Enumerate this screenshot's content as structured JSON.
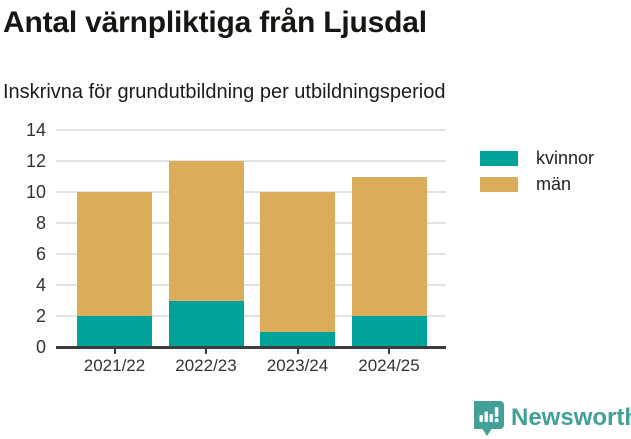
{
  "header": {
    "title": "Antal värnpliktiga från Ljusdal",
    "subtitle": "Inskrivna för grundutbildning per utbildningsperiod"
  },
  "chart_data": {
    "type": "bar",
    "stacked": true,
    "title": "Antal värnpliktiga från Ljusdal",
    "subtitle": "Inskrivna för grundutbildning per utbildningsperiod",
    "categories": [
      "2021/22",
      "2022/23",
      "2023/24",
      "2024/25"
    ],
    "series": [
      {
        "name": "kvinnor",
        "color": "#00a399",
        "values": [
          2,
          3,
          1,
          2
        ]
      },
      {
        "name": "män",
        "color": "#dbac59",
        "values": [
          8,
          9,
          9,
          9
        ]
      }
    ],
    "stack_totals": [
      10,
      12,
      10,
      11
    ],
    "xlabel": "",
    "ylabel": "",
    "ylim": [
      0,
      14
    ],
    "yticks": [
      0,
      2,
      4,
      6,
      8,
      10,
      12,
      14
    ],
    "grid": true,
    "legend_position": "top-right"
  },
  "footer": {
    "brand": "Newsworthy",
    "brand_color": "#42a098",
    "logo_icon": "bar-chart-speech-bubble-icon"
  }
}
